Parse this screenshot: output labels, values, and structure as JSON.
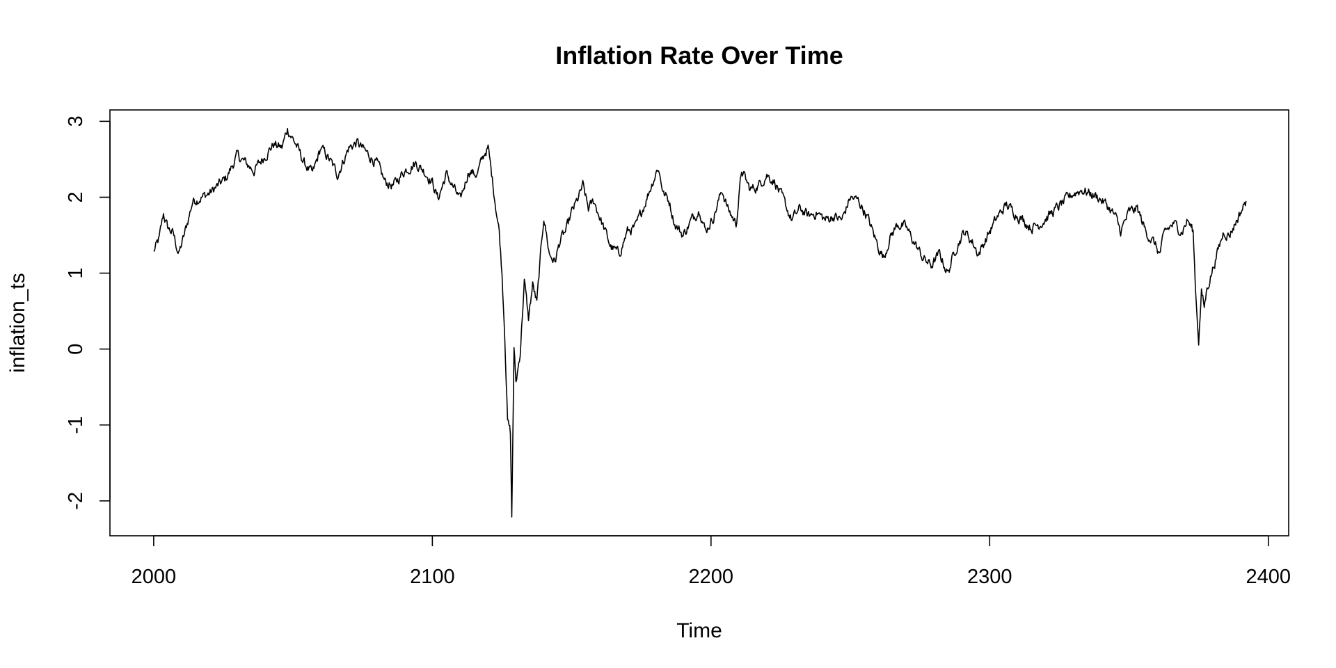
{
  "chart_data": {
    "type": "line",
    "title": "Inflation Rate Over Time",
    "xlabel": "Time",
    "ylabel": "inflation_ts",
    "xlim": [
      1984.3,
      2407.3
    ],
    "ylim": [
      -2.46,
      3.15
    ],
    "x_ticks": [
      2000,
      2100,
      2200,
      2300,
      2400
    ],
    "x_tick_labels": [
      "2000",
      "2100",
      "2200",
      "2300",
      "2400"
    ],
    "y_ticks": [
      -2,
      -1,
      0,
      1,
      2,
      3
    ],
    "y_tick_labels": [
      "-2",
      "-1",
      "0",
      "1",
      "2",
      "3"
    ],
    "grid": false,
    "legend": "none",
    "series": [
      {
        "x_start": 2000,
        "x_end": 2392,
        "keypoints": [
          [
            2000,
            1.28
          ],
          [
            2002,
            1.45
          ],
          [
            2003.5,
            1.78
          ],
          [
            2005,
            1.6
          ],
          [
            2007,
            1.52
          ],
          [
            2009,
            1.25
          ],
          [
            2011,
            1.5
          ],
          [
            2014,
            1.95
          ],
          [
            2017,
            2.0
          ],
          [
            2020,
            2.05
          ],
          [
            2023,
            2.15
          ],
          [
            2026,
            2.25
          ],
          [
            2030,
            2.55
          ],
          [
            2033,
            2.45
          ],
          [
            2036,
            2.35
          ],
          [
            2040,
            2.55
          ],
          [
            2043,
            2.7
          ],
          [
            2046,
            2.65
          ],
          [
            2048,
            2.9
          ],
          [
            2051,
            2.7
          ],
          [
            2054,
            2.45
          ],
          [
            2057,
            2.3
          ],
          [
            2060,
            2.65
          ],
          [
            2063,
            2.5
          ],
          [
            2066,
            2.3
          ],
          [
            2070,
            2.65
          ],
          [
            2073,
            2.72
          ],
          [
            2076,
            2.6
          ],
          [
            2080,
            2.45
          ],
          [
            2083,
            2.2
          ],
          [
            2086,
            2.15
          ],
          [
            2090,
            2.35
          ],
          [
            2094,
            2.45
          ],
          [
            2097,
            2.35
          ],
          [
            2100,
            2.2
          ],
          [
            2102,
            1.98
          ],
          [
            2105,
            2.3
          ],
          [
            2108,
            2.1
          ],
          [
            2110,
            1.95
          ],
          [
            2113,
            2.35
          ],
          [
            2116,
            2.3
          ],
          [
            2119,
            2.6
          ],
          [
            2120,
            2.65
          ],
          [
            2122,
            2.1
          ],
          [
            2124,
            1.55
          ],
          [
            2125,
            1.0
          ],
          [
            2126,
            0.2
          ],
          [
            2127,
            -0.95
          ],
          [
            2128,
            -1.1
          ],
          [
            2128.5,
            -2.22
          ],
          [
            2129.3,
            0.0
          ],
          [
            2130,
            -0.45
          ],
          [
            2131.5,
            -0.05
          ],
          [
            2133,
            0.9
          ],
          [
            2134.5,
            0.4
          ],
          [
            2136,
            0.85
          ],
          [
            2137.5,
            0.6
          ],
          [
            2139,
            1.3
          ],
          [
            2140,
            1.75
          ],
          [
            2141,
            1.5
          ],
          [
            2142,
            1.25
          ],
          [
            2144,
            1.15
          ],
          [
            2146,
            1.45
          ],
          [
            2148,
            1.55
          ],
          [
            2150,
            1.8
          ],
          [
            2152,
            1.95
          ],
          [
            2154,
            2.15
          ],
          [
            2156,
            1.85
          ],
          [
            2158,
            1.95
          ],
          [
            2161,
            1.65
          ],
          [
            2164,
            1.35
          ],
          [
            2167,
            1.25
          ],
          [
            2170,
            1.55
          ],
          [
            2173,
            1.6
          ],
          [
            2176,
            1.9
          ],
          [
            2179,
            2.2
          ],
          [
            2181,
            2.4
          ],
          [
            2183,
            2.05
          ],
          [
            2185,
            1.95
          ],
          [
            2187,
            1.65
          ],
          [
            2190,
            1.5
          ],
          [
            2193,
            1.7
          ],
          [
            2196,
            1.85
          ],
          [
            2198,
            1.55
          ],
          [
            2201,
            1.75
          ],
          [
            2204,
            2.1
          ],
          [
            2206,
            1.85
          ],
          [
            2209,
            1.65
          ],
          [
            2211,
            2.35
          ],
          [
            2214,
            2.1
          ],
          [
            2217,
            2.15
          ],
          [
            2220,
            2.3
          ],
          [
            2223,
            2.2
          ],
          [
            2226,
            1.95
          ],
          [
            2229,
            1.7
          ],
          [
            2232,
            1.85
          ],
          [
            2235,
            1.75
          ],
          [
            2238,
            1.8
          ],
          [
            2241,
            1.7
          ],
          [
            2244,
            1.75
          ],
          [
            2247,
            1.7
          ],
          [
            2250,
            2.0
          ],
          [
            2253,
            1.95
          ],
          [
            2256,
            1.75
          ],
          [
            2258,
            1.55
          ],
          [
            2260,
            1.35
          ],
          [
            2262,
            1.2
          ],
          [
            2264,
            1.45
          ],
          [
            2267,
            1.65
          ],
          [
            2270,
            1.6
          ],
          [
            2273,
            1.4
          ],
          [
            2276,
            1.2
          ],
          [
            2279,
            1.1
          ],
          [
            2282,
            1.25
          ],
          [
            2285,
            1.0
          ],
          [
            2288,
            1.35
          ],
          [
            2291,
            1.55
          ],
          [
            2294,
            1.4
          ],
          [
            2296,
            1.25
          ],
          [
            2300,
            1.55
          ],
          [
            2303,
            1.75
          ],
          [
            2306,
            1.9
          ],
          [
            2309,
            1.8
          ],
          [
            2312,
            1.7
          ],
          [
            2315,
            1.6
          ],
          [
            2318,
            1.65
          ],
          [
            2321,
            1.75
          ],
          [
            2324,
            1.85
          ],
          [
            2327,
            1.95
          ],
          [
            2330,
            2.05
          ],
          [
            2333,
            2.1
          ],
          [
            2336,
            2.05
          ],
          [
            2339,
            2.0
          ],
          [
            2342,
            1.9
          ],
          [
            2345,
            1.75
          ],
          [
            2347,
            1.55
          ],
          [
            2350,
            1.8
          ],
          [
            2353,
            1.85
          ],
          [
            2356,
            1.55
          ],
          [
            2359,
            1.4
          ],
          [
            2361,
            1.25
          ],
          [
            2363,
            1.55
          ],
          [
            2366,
            1.65
          ],
          [
            2369,
            1.55
          ],
          [
            2371,
            1.7
          ],
          [
            2373,
            1.55
          ],
          [
            2374,
            0.7
          ],
          [
            2375,
            0.12
          ],
          [
            2376,
            0.75
          ],
          [
            2377,
            0.55
          ],
          [
            2378,
            0.8
          ],
          [
            2380,
            1.05
          ],
          [
            2382,
            1.3
          ],
          [
            2384,
            1.55
          ],
          [
            2386,
            1.5
          ],
          [
            2388,
            1.65
          ],
          [
            2390,
            1.8
          ],
          [
            2392,
            1.95
          ]
        ]
      }
    ]
  }
}
